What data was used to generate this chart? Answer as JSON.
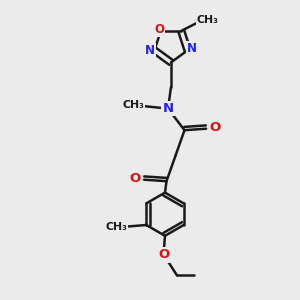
{
  "bg_color": "#ebebeb",
  "bond_color": "#1a1a1a",
  "N_color": "#2020ff",
  "O_color": "#dd1010",
  "lw": 1.8,
  "figsize": [
    3.0,
    3.0
  ],
  "dpi": 100,
  "xlim": [
    0,
    10
  ],
  "ylim": [
    0,
    10
  ]
}
